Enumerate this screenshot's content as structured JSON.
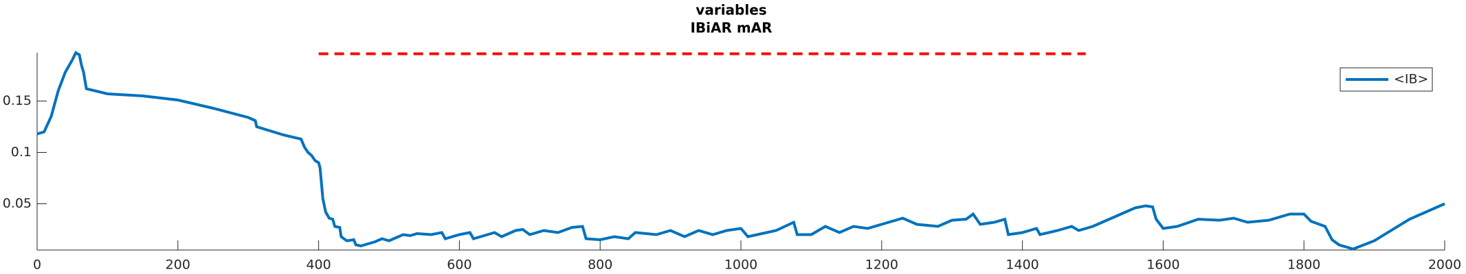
{
  "chart_data": {
    "type": "line",
    "title": [
      "variables",
      "IBiAR mAR"
    ],
    "xlim": [
      0,
      2000
    ],
    "xticks": [
      0,
      200,
      400,
      600,
      800,
      1000,
      1200,
      1400,
      1600,
      1800,
      2000
    ],
    "ylim": [
      0.005,
      0.197
    ],
    "yticks": [
      0.05,
      0.1,
      0.15
    ],
    "legend": "upper right",
    "series": [
      {
        "name": "<IB>",
        "color": "#0072bd",
        "style": "solid",
        "x": [
          0,
          10,
          20,
          30,
          40,
          50,
          55,
          60,
          63,
          66,
          68,
          70,
          100,
          150,
          200,
          250,
          300,
          310,
          312,
          350,
          375,
          380,
          385,
          390,
          395,
          400,
          402,
          404,
          406,
          410,
          415,
          420,
          423,
          430,
          432,
          440,
          450,
          453,
          460,
          480,
          490,
          500,
          510,
          520,
          530,
          540,
          560,
          575,
          580,
          600,
          615,
          620,
          650,
          660,
          680,
          690,
          700,
          720,
          740,
          760,
          775,
          780,
          800,
          820,
          840,
          850,
          880,
          900,
          920,
          940,
          960,
          980,
          1000,
          1010,
          1050,
          1075,
          1080,
          1100,
          1120,
          1140,
          1160,
          1180,
          1200,
          1230,
          1250,
          1280,
          1300,
          1320,
          1330,
          1340,
          1360,
          1375,
          1380,
          1400,
          1420,
          1425,
          1450,
          1470,
          1480,
          1500,
          1520,
          1540,
          1560,
          1575,
          1585,
          1590,
          1600,
          1620,
          1650,
          1680,
          1700,
          1720,
          1750,
          1780,
          1800,
          1810,
          1830,
          1840,
          1850,
          1870,
          1900,
          1950,
          2000
        ],
        "values": [
          0.118,
          0.12,
          0.135,
          0.16,
          0.178,
          0.19,
          0.197,
          0.195,
          0.185,
          0.178,
          0.17,
          0.162,
          0.157,
          0.155,
          0.151,
          0.143,
          0.134,
          0.131,
          0.125,
          0.117,
          0.113,
          0.105,
          0.1,
          0.097,
          0.092,
          0.09,
          0.085,
          0.07,
          0.055,
          0.042,
          0.036,
          0.035,
          0.028,
          0.027,
          0.018,
          0.014,
          0.015,
          0.01,
          0.009,
          0.013,
          0.016,
          0.014,
          0.017,
          0.02,
          0.019,
          0.021,
          0.02,
          0.022,
          0.016,
          0.02,
          0.022,
          0.016,
          0.022,
          0.018,
          0.024,
          0.025,
          0.02,
          0.024,
          0.022,
          0.027,
          0.028,
          0.016,
          0.015,
          0.018,
          0.016,
          0.022,
          0.02,
          0.024,
          0.018,
          0.024,
          0.02,
          0.024,
          0.026,
          0.018,
          0.024,
          0.032,
          0.02,
          0.02,
          0.028,
          0.022,
          0.028,
          0.026,
          0.03,
          0.036,
          0.03,
          0.028,
          0.034,
          0.035,
          0.04,
          0.03,
          0.032,
          0.035,
          0.02,
          0.022,
          0.026,
          0.02,
          0.024,
          0.028,
          0.024,
          0.028,
          0.034,
          0.04,
          0.046,
          0.048,
          0.047,
          0.035,
          0.026,
          0.028,
          0.035,
          0.034,
          0.036,
          0.032,
          0.034,
          0.04,
          0.04,
          0.033,
          0.028,
          0.015,
          0.01,
          0.006,
          0.014,
          0.035,
          0.05
        ]
      },
      {
        "color": "#ff0000",
        "style": "dashed",
        "x": [
          400,
          1490
        ],
        "values": [
          0.196,
          0.196
        ]
      }
    ]
  }
}
